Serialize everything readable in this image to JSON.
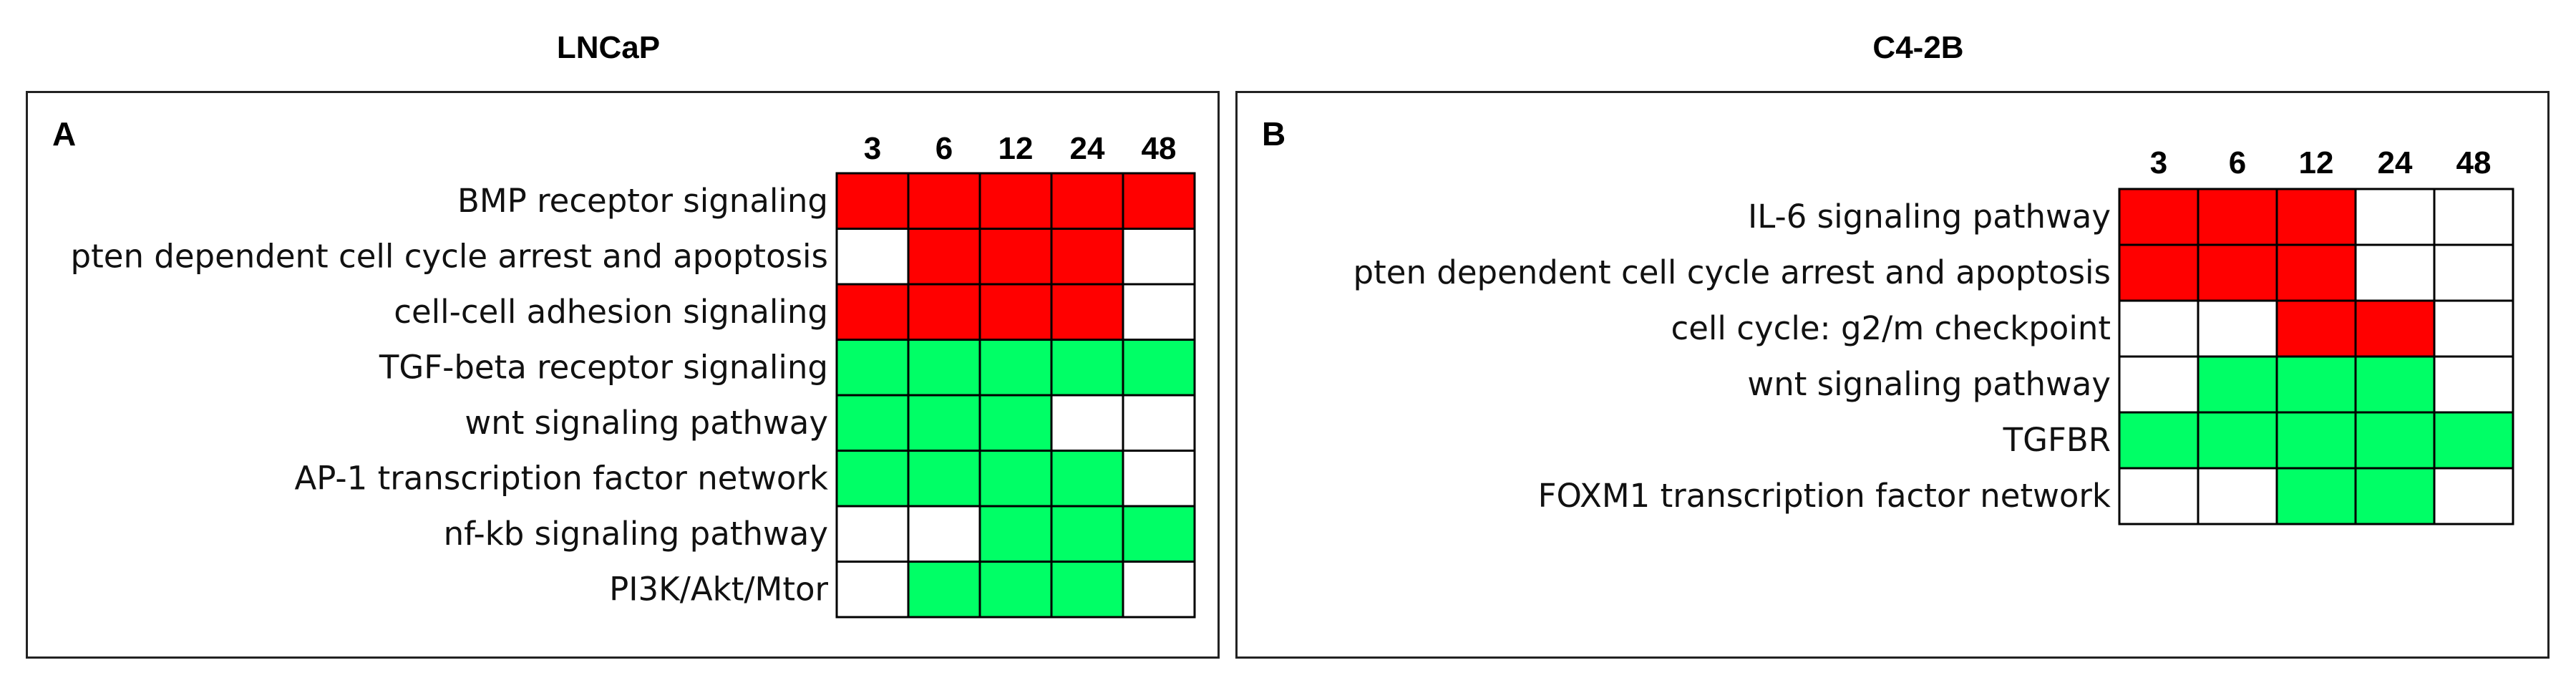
{
  "colors": {
    "up": "#ff0000",
    "down": "#00ff66",
    "none": "#ffffff"
  },
  "chart_data": [
    {
      "type": "heatmap",
      "title": "LNCaP",
      "panel_label": "A",
      "columns": [
        "3",
        "6",
        "12",
        "24",
        "48"
      ],
      "rows": [
        "BMP receptor signaling",
        "pten dependent cell cycle arrest and apoptosis",
        "cell-cell adhesion signaling",
        "TGF-beta receptor signaling",
        "wnt signaling pathway",
        "AP-1 transcription factor network",
        "nf-kb signaling pathway",
        "PI3K/Akt/Mtor"
      ],
      "values": [
        [
          "up",
          "up",
          "up",
          "up",
          "up"
        ],
        [
          "none",
          "up",
          "up",
          "up",
          "none"
        ],
        [
          "up",
          "up",
          "up",
          "up",
          "none"
        ],
        [
          "down",
          "down",
          "down",
          "down",
          "down"
        ],
        [
          "down",
          "down",
          "down",
          "none",
          "none"
        ],
        [
          "down",
          "down",
          "down",
          "down",
          "none"
        ],
        [
          "none",
          "none",
          "down",
          "down",
          "down"
        ],
        [
          "none",
          "down",
          "down",
          "down",
          "none"
        ]
      ]
    },
    {
      "type": "heatmap",
      "title": "C4-2B",
      "panel_label": "B",
      "columns": [
        "3",
        "6",
        "12",
        "24",
        "48"
      ],
      "rows": [
        "IL-6 signaling pathway",
        "pten dependent cell cycle arrest and apoptosis",
        "cell cycle: g2/m checkpoint",
        "wnt signaling pathway",
        "TGFBR",
        "FOXM1 transcription factor network"
      ],
      "values": [
        [
          "up",
          "up",
          "up",
          "none",
          "none"
        ],
        [
          "up",
          "up",
          "up",
          "none",
          "none"
        ],
        [
          "none",
          "none",
          "up",
          "up",
          "none"
        ],
        [
          "none",
          "down",
          "down",
          "down",
          "none"
        ],
        [
          "down",
          "down",
          "down",
          "down",
          "down"
        ],
        [
          "none",
          "none",
          "down",
          "down",
          "none"
        ]
      ]
    }
  ]
}
